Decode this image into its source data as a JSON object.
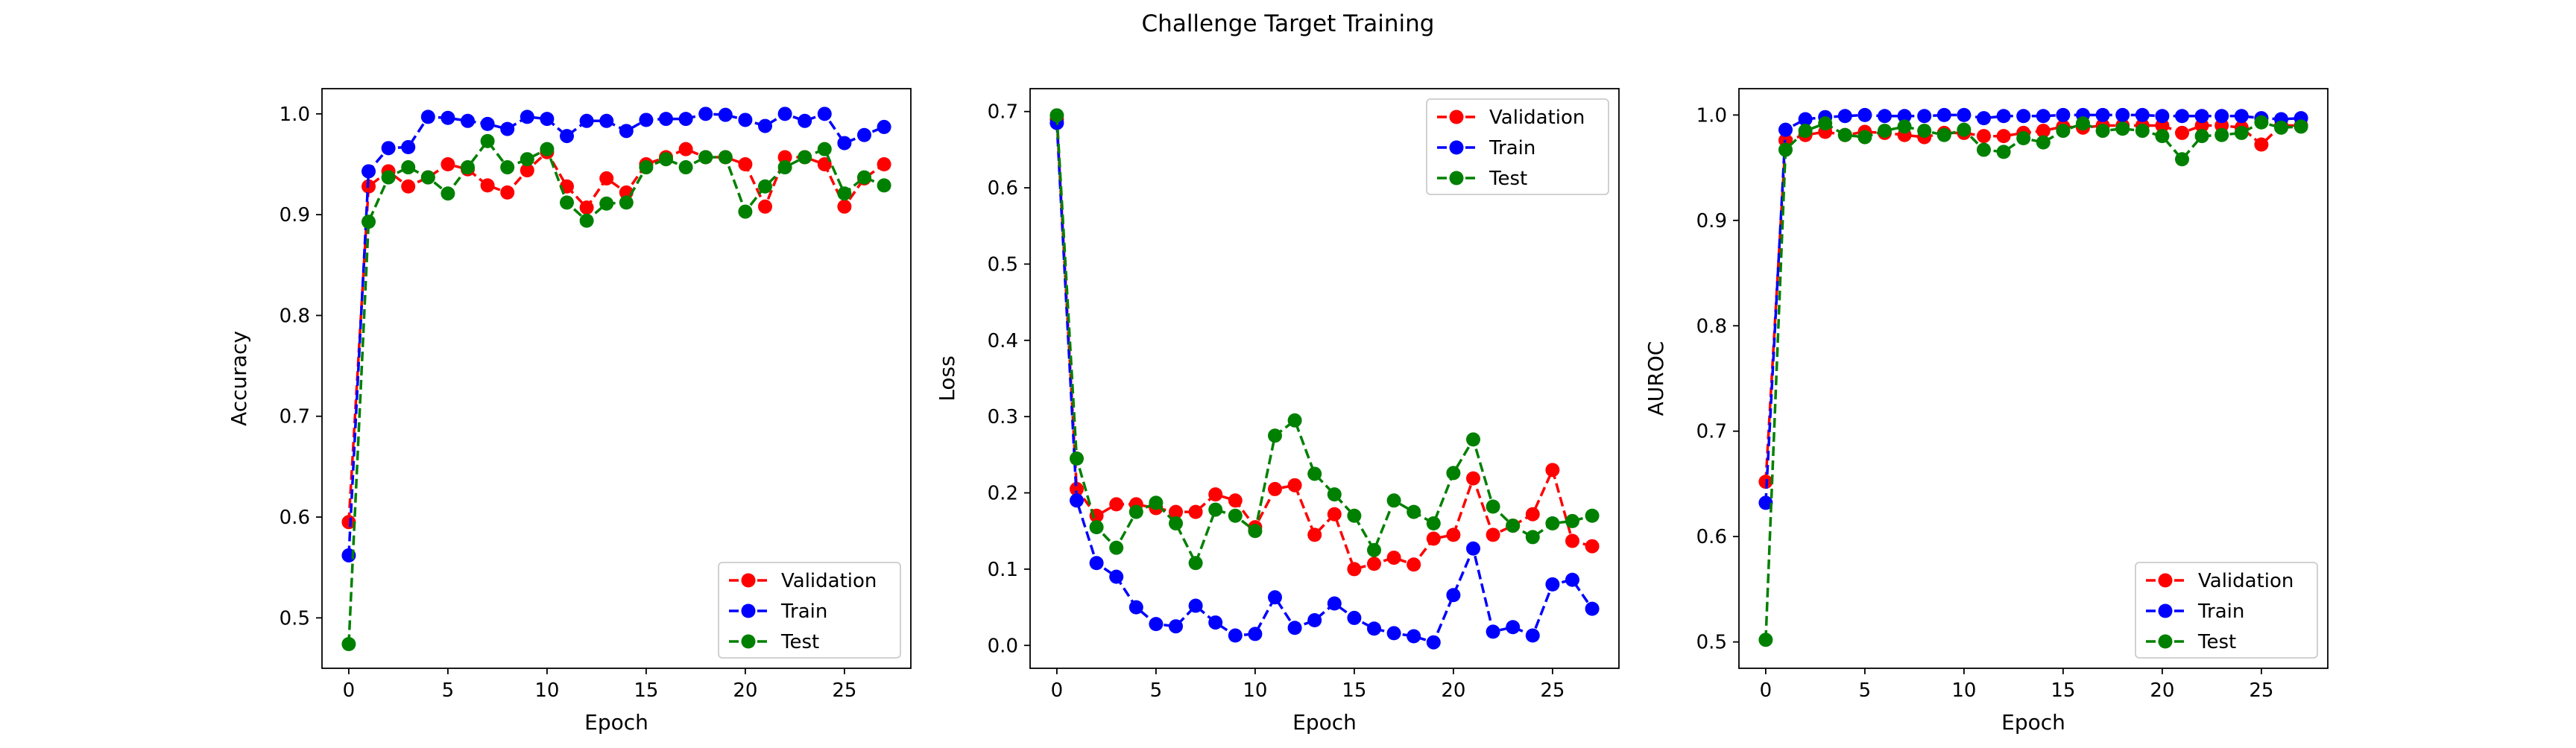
{
  "figure": {
    "title": "Challenge Target Training"
  },
  "colors": {
    "validation": "#ff0000",
    "train": "#0000ff",
    "test": "#008000"
  },
  "chart_data": [
    {
      "type": "line",
      "xlabel": "Epoch",
      "ylabel": "Accuracy",
      "xlim": [
        -1.35,
        28.35
      ],
      "ylim": [
        0.45,
        1.025
      ],
      "xticks": [
        0,
        5,
        10,
        15,
        20,
        25
      ],
      "yticks": [
        0.5,
        0.6,
        0.7,
        0.8,
        0.9,
        1.0
      ],
      "ytick_labels": [
        "0.5",
        "0.6",
        "0.7",
        "0.8",
        "0.9",
        "1.0"
      ],
      "legend_position": "lower-right",
      "x": [
        0,
        1,
        2,
        3,
        4,
        5,
        6,
        7,
        8,
        9,
        10,
        11,
        12,
        13,
        14,
        15,
        16,
        17,
        18,
        19,
        20,
        21,
        22,
        23,
        24,
        25,
        26,
        27
      ],
      "series": [
        {
          "name": "Validation",
          "color": "#ff0000",
          "values": [
            0.595,
            0.928,
            0.943,
            0.928,
            0.937,
            0.95,
            0.945,
            0.929,
            0.922,
            0.944,
            0.962,
            0.928,
            0.907,
            0.936,
            0.922,
            0.95,
            0.957,
            0.965,
            0.957,
            0.957,
            0.95,
            0.908,
            0.957,
            0.957,
            0.95,
            0.908,
            0.936,
            0.95
          ]
        },
        {
          "name": "Train",
          "color": "#0000ff",
          "values": [
            0.562,
            0.943,
            0.966,
            0.967,
            0.997,
            0.996,
            0.993,
            0.99,
            0.985,
            0.997,
            0.995,
            0.978,
            0.993,
            0.993,
            0.983,
            0.994,
            0.995,
            0.995,
            1.0,
            0.999,
            0.994,
            0.988,
            1.0,
            0.993,
            1.0,
            0.971,
            0.979,
            0.987
          ]
        },
        {
          "name": "Test",
          "color": "#008000",
          "values": [
            0.474,
            0.893,
            0.937,
            0.947,
            0.937,
            0.921,
            0.947,
            0.973,
            0.947,
            0.955,
            0.965,
            0.912,
            0.894,
            0.911,
            0.912,
            0.947,
            0.955,
            0.947,
            0.957,
            0.957,
            0.903,
            0.928,
            0.947,
            0.957,
            0.965,
            0.921,
            0.937,
            0.929
          ]
        }
      ]
    },
    {
      "type": "line",
      "xlabel": "Epoch",
      "ylabel": "Loss",
      "xlim": [
        -1.35,
        28.35
      ],
      "ylim": [
        -0.03,
        0.73
      ],
      "xticks": [
        0,
        5,
        10,
        15,
        20,
        25
      ],
      "yticks": [
        0.0,
        0.1,
        0.2,
        0.3,
        0.4,
        0.5,
        0.6,
        0.7
      ],
      "ytick_labels": [
        "0.0",
        "0.1",
        "0.2",
        "0.3",
        "0.4",
        "0.5",
        "0.6",
        "0.7"
      ],
      "legend_position": "upper-right",
      "x": [
        0,
        1,
        2,
        3,
        4,
        5,
        6,
        7,
        8,
        9,
        10,
        11,
        12,
        13,
        14,
        15,
        16,
        17,
        18,
        19,
        20,
        21,
        22,
        23,
        24,
        25,
        26,
        27
      ],
      "series": [
        {
          "name": "Validation",
          "color": "#ff0000",
          "values": [
            0.69,
            0.205,
            0.17,
            0.185,
            0.185,
            0.18,
            0.175,
            0.175,
            0.198,
            0.19,
            0.155,
            0.205,
            0.21,
            0.145,
            0.172,
            0.1,
            0.107,
            0.115,
            0.106,
            0.14,
            0.145,
            0.219,
            0.145,
            0.157,
            0.172,
            0.23,
            0.137,
            0.13
          ]
        },
        {
          "name": "Train",
          "color": "#0000ff",
          "values": [
            0.685,
            0.19,
            0.108,
            0.09,
            0.05,
            0.028,
            0.025,
            0.052,
            0.03,
            0.013,
            0.015,
            0.063,
            0.023,
            0.033,
            0.055,
            0.036,
            0.022,
            0.016,
            0.012,
            0.004,
            0.066,
            0.127,
            0.018,
            0.024,
            0.013,
            0.08,
            0.086,
            0.048
          ]
        },
        {
          "name": "Test",
          "color": "#008000",
          "values": [
            0.695,
            0.245,
            0.155,
            0.128,
            0.175,
            0.187,
            0.16,
            0.108,
            0.178,
            0.17,
            0.15,
            0.275,
            0.295,
            0.225,
            0.198,
            0.17,
            0.125,
            0.19,
            0.175,
            0.16,
            0.226,
            0.27,
            0.182,
            0.157,
            0.142,
            0.16,
            0.163,
            0.17
          ]
        }
      ]
    },
    {
      "type": "line",
      "xlabel": "Epoch",
      "ylabel": "AUROC",
      "xlim": [
        -1.35,
        28.35
      ],
      "ylim": [
        0.475,
        1.025
      ],
      "xticks": [
        0,
        5,
        10,
        15,
        20,
        25
      ],
      "yticks": [
        0.5,
        0.6,
        0.7,
        0.8,
        0.9,
        1.0
      ],
      "ytick_labels": [
        "0.5",
        "0.6",
        "0.7",
        "0.8",
        "0.9",
        "1.0"
      ],
      "legend_position": "lower-right",
      "x": [
        0,
        1,
        2,
        3,
        4,
        5,
        6,
        7,
        8,
        9,
        10,
        11,
        12,
        13,
        14,
        15,
        16,
        17,
        18,
        19,
        20,
        21,
        22,
        23,
        24,
        25,
        26,
        27
      ],
      "series": [
        {
          "name": "Validation",
          "color": "#ff0000",
          "values": [
            0.652,
            0.976,
            0.981,
            0.984,
            0.981,
            0.984,
            0.983,
            0.981,
            0.979,
            0.983,
            0.983,
            0.98,
            0.98,
            0.983,
            0.985,
            0.989,
            0.988,
            0.99,
            0.99,
            0.99,
            0.99,
            0.983,
            0.99,
            0.99,
            0.988,
            0.972,
            0.99,
            0.99
          ]
        },
        {
          "name": "Train",
          "color": "#0000ff",
          "values": [
            0.632,
            0.986,
            0.996,
            0.998,
            0.999,
            1.0,
            0.999,
            0.999,
            0.999,
            1.0,
            1.0,
            0.997,
            0.999,
            0.999,
            0.999,
            1.0,
            1.0,
            1.0,
            1.0,
            1.0,
            0.999,
            0.999,
            0.999,
            0.999,
            0.999,
            0.997,
            0.996,
            0.997
          ]
        },
        {
          "name": "Test",
          "color": "#008000",
          "values": [
            0.502,
            0.967,
            0.985,
            0.992,
            0.981,
            0.979,
            0.985,
            0.989,
            0.985,
            0.981,
            0.986,
            0.967,
            0.965,
            0.978,
            0.974,
            0.985,
            0.992,
            0.985,
            0.987,
            0.985,
            0.98,
            0.958,
            0.98,
            0.981,
            0.983,
            0.993,
            0.988,
            0.989
          ]
        }
      ]
    }
  ]
}
